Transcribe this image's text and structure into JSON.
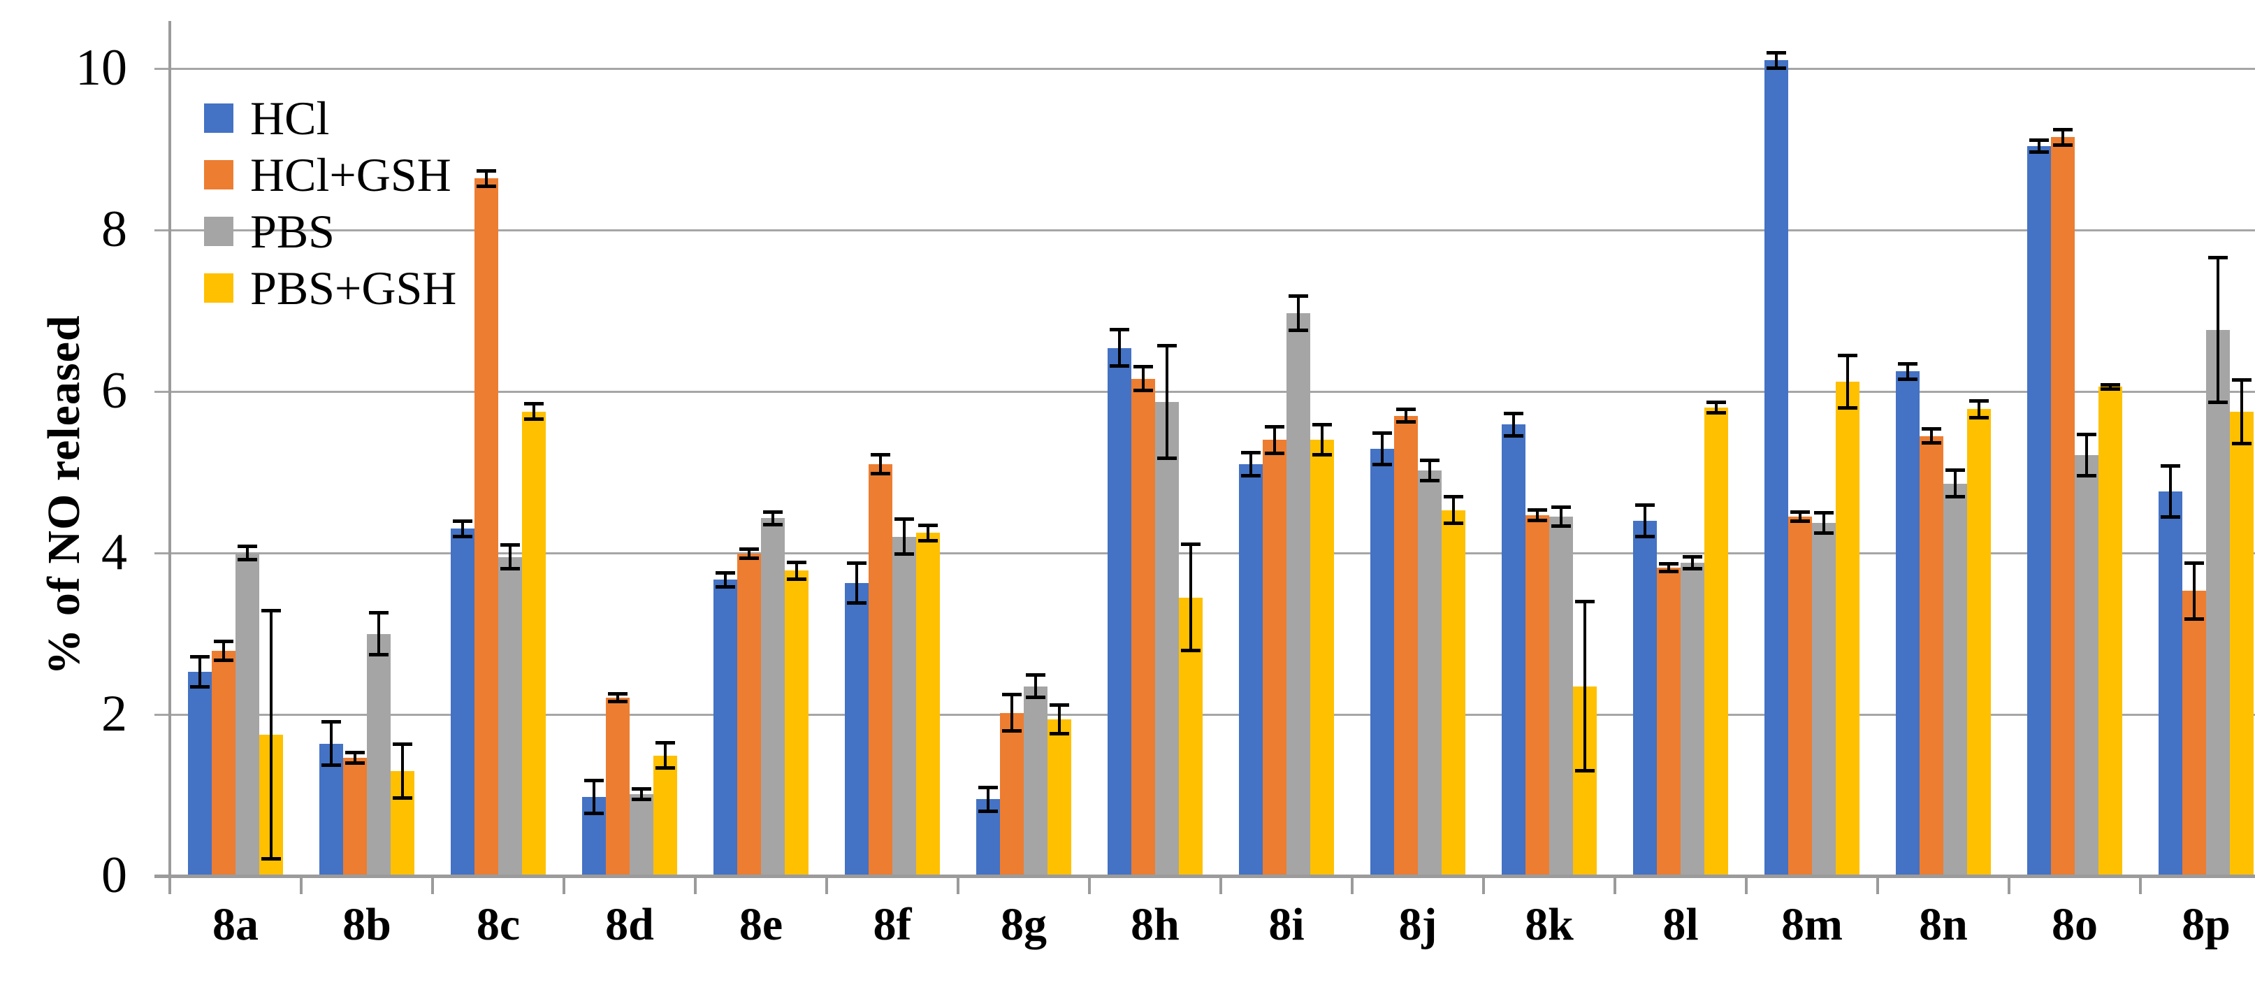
{
  "chart_data": {
    "type": "bar",
    "title": "",
    "ylabel": "% of NO released",
    "xlabel": "",
    "ylim": [
      0,
      10.6
    ],
    "yticks": [
      0,
      2,
      4,
      6,
      8,
      10
    ],
    "grid": true,
    "legend_position": "top-left",
    "categories": [
      "8a",
      "8b",
      "8c",
      "8d",
      "8e",
      "8f",
      "8g",
      "8h",
      "8i",
      "8j",
      "8k",
      "8l",
      "8m",
      "8n",
      "8o",
      "8p"
    ],
    "series": [
      {
        "name": "HCl",
        "color": "#4472C4",
        "values": [
          2.53,
          1.64,
          4.3,
          0.98,
          3.67,
          3.63,
          0.95,
          6.54,
          5.1,
          5.29,
          5.59,
          4.4,
          10.1,
          6.25,
          9.04,
          4.76
        ],
        "errors": [
          0.19,
          0.27,
          0.1,
          0.21,
          0.09,
          0.25,
          0.15,
          0.23,
          0.15,
          0.2,
          0.14,
          0.2,
          0.1,
          0.1,
          0.08,
          0.32
        ]
      },
      {
        "name": "HCl+GSH",
        "color": "#ED7D31",
        "values": [
          2.79,
          1.46,
          8.64,
          2.21,
          3.99,
          5.1,
          2.02,
          6.16,
          5.4,
          5.7,
          4.47,
          3.82,
          4.45,
          5.45,
          9.15,
          3.53
        ],
        "errors": [
          0.12,
          0.07,
          0.1,
          0.05,
          0.06,
          0.12,
          0.23,
          0.15,
          0.17,
          0.08,
          0.07,
          0.05,
          0.06,
          0.09,
          0.1,
          0.35
        ]
      },
      {
        "name": "PBS",
        "color": "#A5A5A5",
        "values": [
          4.0,
          3.0,
          3.95,
          1.01,
          4.43,
          4.2,
          2.35,
          5.87,
          6.97,
          5.02,
          4.45,
          3.88,
          4.37,
          4.86,
          5.21,
          6.76
        ],
        "errors": [
          0.09,
          0.26,
          0.15,
          0.07,
          0.08,
          0.22,
          0.14,
          0.7,
          0.22,
          0.13,
          0.12,
          0.08,
          0.13,
          0.17,
          0.26,
          0.9
        ]
      },
      {
        "name": "PBS+GSH",
        "color": "#FFC000",
        "values": [
          1.75,
          1.3,
          5.75,
          1.49,
          3.78,
          4.25,
          1.94,
          3.45,
          5.4,
          4.53,
          2.35,
          5.8,
          6.12,
          5.78,
          6.06,
          5.75
        ],
        "errors": [
          1.54,
          0.34,
          0.1,
          0.16,
          0.11,
          0.1,
          0.18,
          0.66,
          0.19,
          0.17,
          1.05,
          0.07,
          0.33,
          0.11,
          0.03,
          0.4
        ]
      }
    ]
  },
  "style": {
    "grid_color": "#A6A6A6",
    "axis_color": "#9B9B9B",
    "error_bar_color": "#000000",
    "background": "#FFFFFF",
    "text_color": "#000000"
  }
}
